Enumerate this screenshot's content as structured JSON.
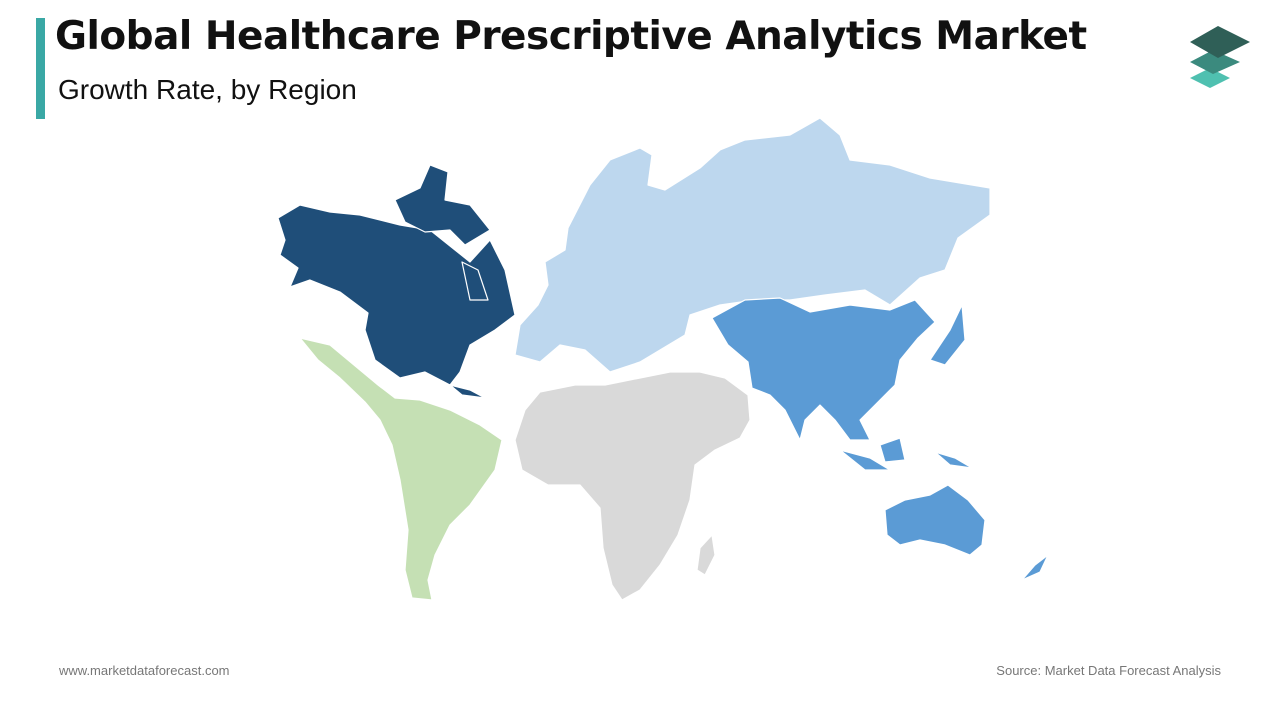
{
  "header": {
    "title": "Global Healthcare Prescriptive Analytics Market",
    "subtitle": "Growth Rate, by Region"
  },
  "footer": {
    "website": "www.marketdataforecast.com",
    "source": "Source: Market Data Forecast Analysis"
  }
}
